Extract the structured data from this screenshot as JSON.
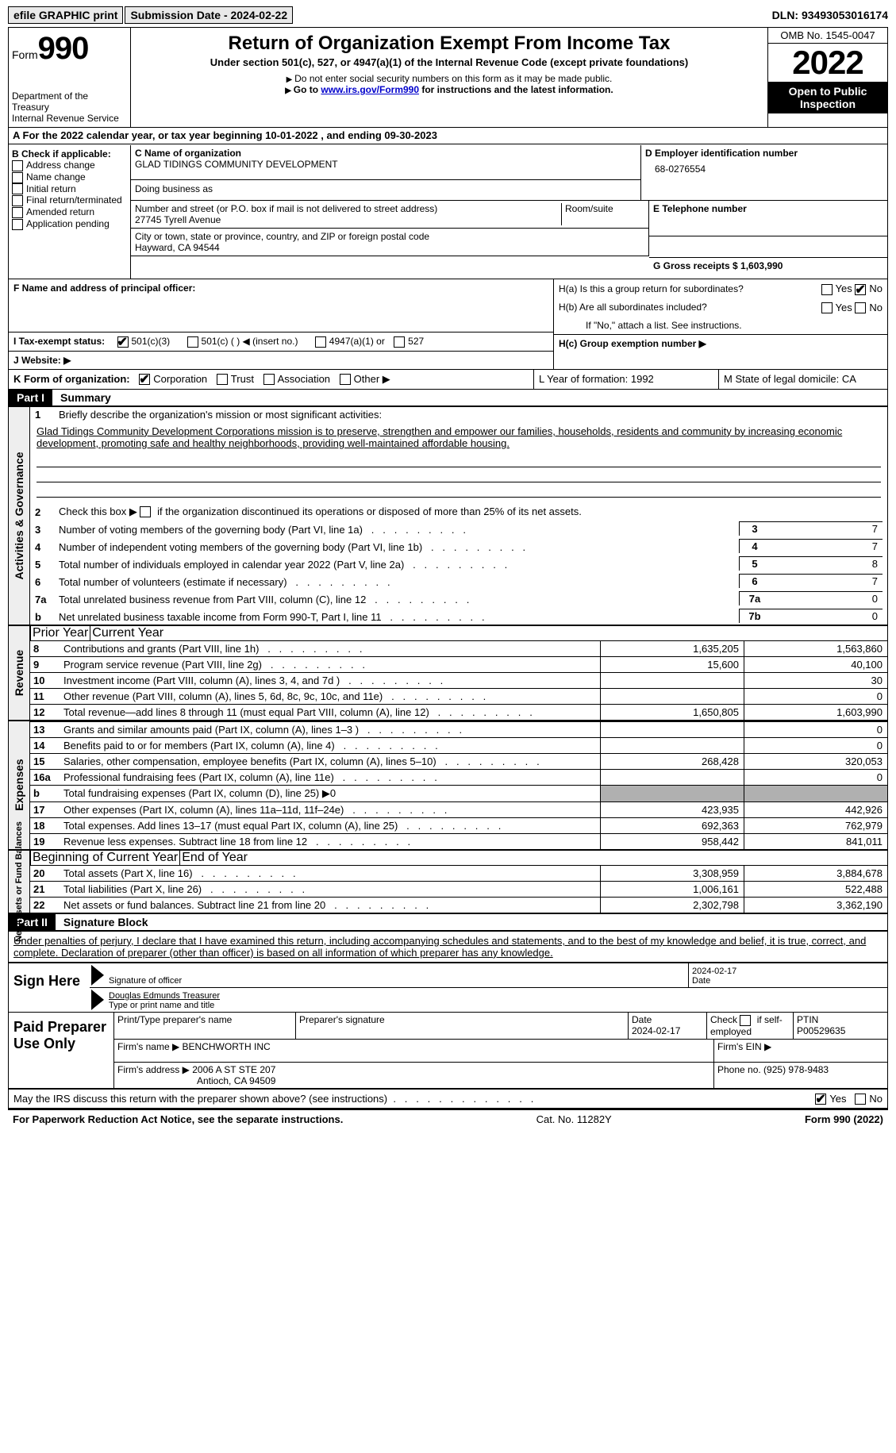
{
  "topbar": {
    "efile": "efile GRAPHIC print",
    "submission_label": "Submission Date - 2024-02-22",
    "dln": "DLN: 93493053016174"
  },
  "header": {
    "form_word": "Form",
    "form_num": "990",
    "dept": "Department of the Treasury",
    "irs": "Internal Revenue Service",
    "title": "Return of Organization Exempt From Income Tax",
    "under": "Under section 501(c), 527, or 4947(a)(1) of the Internal Revenue Code (except private foundations)",
    "nosocial": "Do not enter social security numbers on this form as it may be made public.",
    "goto": "Go to ",
    "link": "www.irs.gov/Form990",
    "goto2": " for instructions and the latest information.",
    "omb": "OMB No. 1545-0047",
    "year": "2022",
    "open": "Open to Public Inspection"
  },
  "lineA": "For the 2022 calendar year, or tax year beginning 10-01-2022    , and ending 09-30-2023",
  "boxB": {
    "label": "B Check if applicable:",
    "opts": [
      "Address change",
      "Name change",
      "Initial return",
      "Final return/terminated",
      "Amended return",
      "Application pending"
    ]
  },
  "boxC": {
    "label": "C Name of organization",
    "name": "GLAD TIDINGS COMMUNITY DEVELOPMENT",
    "dba": "Doing business as",
    "addr_label": "Number and street (or P.O. box if mail is not delivered to street address)",
    "room": "Room/suite",
    "addr": "27745 Tyrell Avenue",
    "city_label": "City or town, state or province, country, and ZIP or foreign postal code",
    "city": "Hayward, CA  94544"
  },
  "boxD": {
    "label": "D Employer identification number",
    "ein": "68-0276554"
  },
  "boxE": {
    "label": "E Telephone number",
    "val": ""
  },
  "boxG": {
    "label": "G Gross receipts $ 1,603,990"
  },
  "boxF": {
    "label": "F  Name and address of principal officer:"
  },
  "boxH": {
    "ha": "H(a)  Is this a group return for subordinates?",
    "hb": "H(b)  Are all subordinates included?",
    "hbnote": "If \"No,\" attach a list. See instructions.",
    "hc": "H(c)  Group exemption number ▶"
  },
  "boxI": {
    "label": "I   Tax-exempt status:",
    "o1": "501(c)(3)",
    "o2": "501(c) (  ) ◀ (insert no.)",
    "o3": "4947(a)(1) or",
    "o4": "527"
  },
  "boxJ": "J   Website: ▶",
  "boxK": {
    "label": "K Form of organization:",
    "opts": [
      "Corporation",
      "Trust",
      "Association",
      "Other ▶"
    ]
  },
  "boxL": "L Year of formation: 1992",
  "boxM": "M State of legal domicile: CA",
  "partI": {
    "hdr": "Part I",
    "title": "Summary"
  },
  "mission": {
    "q1": "Briefly describe the organization's mission or most significant activities:",
    "text": "Glad Tidings Community Development Corporations mission is to preserve, strengthen and empower our families, households, residents and community by increasing economic development, promoting safe and healthy neighborhoods, providing well-maintained affordable housing."
  },
  "summary": {
    "q2": "Check this box ▶        if the organization discontinued its operations or disposed of more than 25% of its net assets.",
    "rows_simple": [
      {
        "n": "3",
        "t": "Number of voting members of the governing body (Part VI, line 1a)",
        "box": "3",
        "v": "7"
      },
      {
        "n": "4",
        "t": "Number of independent voting members of the governing body (Part VI, line 1b)",
        "box": "4",
        "v": "7"
      },
      {
        "n": "5",
        "t": "Total number of individuals employed in calendar year 2022 (Part V, line 2a)",
        "box": "5",
        "v": "8"
      },
      {
        "n": "6",
        "t": "Total number of volunteers (estimate if necessary)",
        "box": "6",
        "v": "7"
      },
      {
        "n": "7a",
        "t": "Total unrelated business revenue from Part VIII, column (C), line 12",
        "box": "7a",
        "v": "0"
      },
      {
        "n": "b",
        "t": "Net unrelated business taxable income from Form 990-T, Part I, line 11",
        "box": "7b",
        "v": "0"
      }
    ],
    "col_prior": "Prior Year",
    "col_current": "Current Year"
  },
  "revenue": [
    {
      "n": "8",
      "t": "Contributions and grants (Part VIII, line 1h)",
      "p": "1,635,205",
      "c": "1,563,860"
    },
    {
      "n": "9",
      "t": "Program service revenue (Part VIII, line 2g)",
      "p": "15,600",
      "c": "40,100"
    },
    {
      "n": "10",
      "t": "Investment income (Part VIII, column (A), lines 3, 4, and 7d )",
      "p": "",
      "c": "30"
    },
    {
      "n": "11",
      "t": "Other revenue (Part VIII, column (A), lines 5, 6d, 8c, 9c, 10c, and 11e)",
      "p": "",
      "c": "0"
    },
    {
      "n": "12",
      "t": "Total revenue—add lines 8 through 11 (must equal Part VIII, column (A), line 12)",
      "p": "1,650,805",
      "c": "1,603,990"
    }
  ],
  "expenses": [
    {
      "n": "13",
      "t": "Grants and similar amounts paid (Part IX, column (A), lines 1–3 )",
      "p": "",
      "c": "0"
    },
    {
      "n": "14",
      "t": "Benefits paid to or for members (Part IX, column (A), line 4)",
      "p": "",
      "c": "0"
    },
    {
      "n": "15",
      "t": "Salaries, other compensation, employee benefits (Part IX, column (A), lines 5–10)",
      "p": "268,428",
      "c": "320,053"
    },
    {
      "n": "16a",
      "t": "Professional fundraising fees (Part IX, column (A), line 11e)",
      "p": "",
      "c": "0"
    },
    {
      "n": "b",
      "t": "Total fundraising expenses (Part IX, column (D), line 25) ▶0",
      "p": "GREY",
      "c": "GREY"
    },
    {
      "n": "17",
      "t": "Other expenses (Part IX, column (A), lines 11a–11d, 11f–24e)",
      "p": "423,935",
      "c": "442,926"
    },
    {
      "n": "18",
      "t": "Total expenses. Add lines 13–17 (must equal Part IX, column (A), line 25)",
      "p": "692,363",
      "c": "762,979"
    },
    {
      "n": "19",
      "t": "Revenue less expenses. Subtract line 18 from line 12",
      "p": "958,442",
      "c": "841,011"
    }
  ],
  "net_hdr": {
    "p": "Beginning of Current Year",
    "c": "End of Year"
  },
  "net": [
    {
      "n": "20",
      "t": "Total assets (Part X, line 16)",
      "p": "3,308,959",
      "c": "3,884,678"
    },
    {
      "n": "21",
      "t": "Total liabilities (Part X, line 26)",
      "p": "1,006,161",
      "c": "522,488"
    },
    {
      "n": "22",
      "t": "Net assets or fund balances. Subtract line 21 from line 20",
      "p": "2,302,798",
      "c": "3,362,190"
    }
  ],
  "sidelabels": {
    "gov": "Activities & Governance",
    "rev": "Revenue",
    "exp": "Expenses",
    "net": "Net Assets or Fund Balances"
  },
  "partII": {
    "hdr": "Part II",
    "title": "Signature Block"
  },
  "sig": {
    "penalty": "Under penalties of perjury, I declare that I have examined this return, including accompanying schedules and statements, and to the best of my knowledge and belief, it is true, correct, and complete. Declaration of preparer (other than officer) is based on all information of which preparer has any knowledge.",
    "signhere": "Sign Here",
    "sigoff": "Signature of officer",
    "date": "Date",
    "datev": "2024-02-17",
    "name": "Douglas Edmunds  Treasurer",
    "namelabel": "Type or print name and title"
  },
  "prep": {
    "label": "Paid Preparer Use Only",
    "h_name": "Print/Type preparer's name",
    "h_sig": "Preparer's signature",
    "h_date": "Date",
    "h_datev": "2024-02-17",
    "h_check": "Check          if self-employed",
    "h_ptin": "PTIN",
    "ptin": "P00529635",
    "firm_label": "Firm's name     ▶",
    "firm": "BENCHWORTH INC",
    "ein_label": "Firm's EIN ▶",
    "addr_label": "Firm's address ▶",
    "addr1": "2006 A ST STE 207",
    "addr2": "Antioch, CA  94509",
    "phone_label": "Phone no. (925) 978-9483"
  },
  "discuss": "May the IRS discuss this return with the preparer shown above? (see instructions)",
  "footer": {
    "paperwork": "For Paperwork Reduction Act Notice, see the separate instructions.",
    "cat": "Cat. No. 11282Y",
    "form": "Form 990 (2022)"
  },
  "yesno": {
    "yes": "Yes",
    "no": "No"
  }
}
